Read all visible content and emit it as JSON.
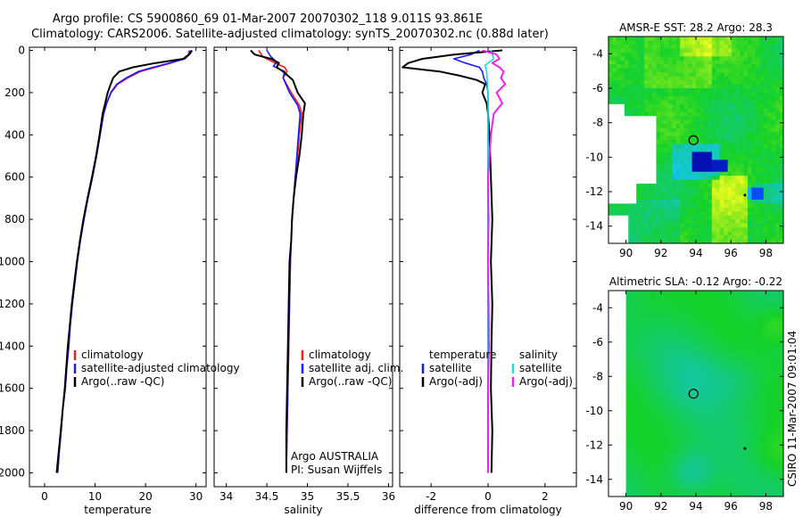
{
  "title_line1": "Argo profile: CS 5900860_69 01-Mar-2007 20070302_118 9.011S 93.861E",
  "title_line2": "Climatology: CARS2006. Satellite-adjusted climatology: synTS_20070302.nc (0.88d later)",
  "footer_text": "CSIRO 11-Mar-2007 09:01:04",
  "colors": {
    "climatology": "#ff1a1a",
    "satellite": "#1a1aff",
    "argo": "#000000",
    "cyan": "#22dddd",
    "magenta": "#ee22ee"
  },
  "chart_data": [
    {
      "id": "temperature",
      "type": "line",
      "xlabel": "temperature",
      "xlim": [
        -3,
        32
      ],
      "xticks": [
        0,
        10,
        20,
        30
      ],
      "xtick_labels": [
        "0",
        "10",
        "20",
        "30"
      ],
      "ylim": [
        0,
        2050
      ],
      "yticks": [
        0,
        200,
        400,
        600,
        800,
        1000,
        1200,
        1400,
        1600,
        1800,
        2000
      ],
      "ytick_labels": [
        "0",
        "200",
        "400",
        "600",
        "800",
        "1000",
        "1200",
        "1400",
        "1600",
        "1800",
        "2000"
      ],
      "y_reversed": true,
      "legend": [
        "climatology",
        "satellite-adjusted climatology",
        "Argo(..raw -QC)"
      ],
      "series": [
        {
          "name": "climatology",
          "color": "#ff1a1a",
          "points": [
            [
              28.6,
              0
            ],
            [
              28.5,
              20
            ],
            [
              27.6,
              40
            ],
            [
              25,
              60
            ],
            [
              22,
              80
            ],
            [
              19,
              100
            ],
            [
              16.5,
              130
            ],
            [
              14.5,
              160
            ],
            [
              13.2,
              200
            ],
            [
              12.3,
              250
            ],
            [
              11.7,
              300
            ],
            [
              11,
              400
            ],
            [
              10.3,
              500
            ],
            [
              9.5,
              600
            ],
            [
              8.6,
              700
            ],
            [
              7.8,
              800
            ],
            [
              7.1,
              900
            ],
            [
              6.5,
              1000
            ],
            [
              6,
              1100
            ],
            [
              5.5,
              1200
            ],
            [
              5.1,
              1300
            ],
            [
              4.8,
              1400
            ],
            [
              4.4,
              1500
            ],
            [
              4.1,
              1600
            ],
            [
              3.6,
              1700
            ],
            [
              3.3,
              1800
            ],
            [
              2.9,
              1900
            ],
            [
              2.6,
              2000
            ]
          ]
        },
        {
          "name": "satellite-adjusted climatology",
          "color": "#1a1aff",
          "points": [
            [
              28.9,
              0
            ],
            [
              28.7,
              20
            ],
            [
              27.8,
              40
            ],
            [
              24.8,
              60
            ],
            [
              21.5,
              80
            ],
            [
              18.6,
              100
            ],
            [
              16.2,
              130
            ],
            [
              14.3,
              160
            ],
            [
              13.1,
              200
            ],
            [
              12.3,
              250
            ],
            [
              11.7,
              300
            ],
            [
              11,
              400
            ],
            [
              10.3,
              500
            ],
            [
              9.5,
              600
            ],
            [
              8.6,
              700
            ],
            [
              7.8,
              800
            ],
            [
              7.1,
              900
            ],
            [
              6.5,
              1000
            ],
            [
              6,
              1100
            ],
            [
              5.5,
              1200
            ],
            [
              5.1,
              1300
            ],
            [
              4.8,
              1400
            ],
            [
              4.4,
              1500
            ],
            [
              4.1,
              1600
            ],
            [
              3.6,
              1700
            ],
            [
              3.3,
              1800
            ],
            [
              2.9,
              1900
            ],
            [
              2.6,
              2000
            ]
          ]
        },
        {
          "name": "Argo(..raw -QC)",
          "color": "#000000",
          "points": [
            [
              29.2,
              0
            ],
            [
              28.8,
              15
            ],
            [
              27.5,
              40
            ],
            [
              22,
              60
            ],
            [
              17.5,
              80
            ],
            [
              14.8,
              100
            ],
            [
              13.6,
              130
            ],
            [
              13.1,
              160
            ],
            [
              12.5,
              200
            ],
            [
              12,
              250
            ],
            [
              11.5,
              300
            ],
            [
              10.9,
              400
            ],
            [
              10.2,
              500
            ],
            [
              9.4,
              600
            ],
            [
              8.5,
              700
            ],
            [
              7.7,
              800
            ],
            [
              7,
              900
            ],
            [
              6.4,
              1000
            ],
            [
              5.9,
              1100
            ],
            [
              5.4,
              1200
            ],
            [
              5,
              1300
            ],
            [
              4.6,
              1400
            ],
            [
              4.3,
              1500
            ],
            [
              4,
              1600
            ],
            [
              3.6,
              1700
            ],
            [
              3.2,
              1800
            ],
            [
              2.8,
              1900
            ],
            [
              2.4,
              2000
            ]
          ]
        }
      ]
    },
    {
      "id": "salinity",
      "type": "line",
      "xlabel": "salinity",
      "xlim": [
        33.85,
        36.05
      ],
      "xticks": [
        34,
        34.5,
        35,
        35.5,
        36
      ],
      "xtick_labels": [
        "34",
        "34.5",
        "35",
        "35.5",
        "36"
      ],
      "ylim": [
        0,
        2050
      ],
      "y_reversed": true,
      "legend": [
        "climatology",
        "satellite adj. clim.",
        "Argo(..raw -QC)"
      ],
      "annotation": [
        "Argo AUSTRALIA",
        "PI: Susan Wijffels"
      ],
      "series": [
        {
          "name": "climatology",
          "color": "#ff1a1a",
          "points": [
            [
              34.4,
              0
            ],
            [
              34.45,
              30
            ],
            [
              34.6,
              60
            ],
            [
              34.72,
              80
            ],
            [
              34.75,
              100
            ],
            [
              34.7,
              130
            ],
            [
              34.8,
              200
            ],
            [
              34.9,
              260
            ],
            [
              34.93,
              300
            ],
            [
              34.9,
              400
            ],
            [
              34.88,
              500
            ],
            [
              34.85,
              600
            ],
            [
              34.83,
              700
            ],
            [
              34.81,
              800
            ],
            [
              34.8,
              900
            ],
            [
              34.79,
              1000
            ],
            [
              34.78,
              1200
            ],
            [
              34.77,
              1400
            ],
            [
              34.76,
              1600
            ],
            [
              34.75,
              1800
            ],
            [
              34.74,
              2000
            ]
          ]
        },
        {
          "name": "satellite adj. clim.",
          "color": "#1a1aff",
          "points": [
            [
              34.5,
              0
            ],
            [
              34.55,
              30
            ],
            [
              34.62,
              55
            ],
            [
              34.58,
              75
            ],
            [
              34.72,
              100
            ],
            [
              34.7,
              130
            ],
            [
              34.78,
              200
            ],
            [
              34.88,
              260
            ],
            [
              34.91,
              300
            ],
            [
              34.89,
              400
            ],
            [
              34.87,
              500
            ],
            [
              34.85,
              600
            ],
            [
              34.83,
              700
            ],
            [
              34.81,
              800
            ],
            [
              34.8,
              900
            ],
            [
              34.79,
              1000
            ],
            [
              34.78,
              1200
            ],
            [
              34.77,
              1400
            ],
            [
              34.76,
              1600
            ],
            [
              34.75,
              1800
            ],
            [
              34.74,
              2000
            ]
          ]
        },
        {
          "name": "Argo(..raw -QC)",
          "color": "#000000",
          "points": [
            [
              34.3,
              0
            ],
            [
              34.35,
              20
            ],
            [
              34.55,
              40
            ],
            [
              34.65,
              60
            ],
            [
              34.62,
              80
            ],
            [
              34.7,
              100
            ],
            [
              34.82,
              140
            ],
            [
              34.88,
              200
            ],
            [
              34.97,
              250
            ],
            [
              34.95,
              300
            ],
            [
              34.93,
              400
            ],
            [
              34.9,
              500
            ],
            [
              34.86,
              600
            ],
            [
              34.83,
              700
            ],
            [
              34.81,
              800
            ],
            [
              34.8,
              900
            ],
            [
              34.78,
              1000
            ],
            [
              34.77,
              1200
            ],
            [
              34.76,
              1400
            ],
            [
              34.75,
              1600
            ],
            [
              34.74,
              1800
            ],
            [
              34.74,
              2000
            ]
          ]
        }
      ]
    },
    {
      "id": "difference",
      "type": "line",
      "xlabel": "difference from climatology",
      "xlim": [
        -3.1,
        3.1
      ],
      "xticks": [
        -2,
        0,
        2
      ],
      "xtick_labels": [
        "-2",
        "0",
        "2"
      ],
      "ylim": [
        0,
        2050
      ],
      "y_reversed": true,
      "legend_groups": [
        {
          "title": "temperature",
          "items": [
            "satellite",
            "Argo(-adj)"
          ]
        },
        {
          "title": "salinity",
          "items": [
            "satellite",
            "Argo(-adj)"
          ]
        }
      ],
      "series": [
        {
          "name": "temperature satellite",
          "color": "#1a1aff",
          "points": [
            [
              -0.3,
              0
            ],
            [
              -0.6,
              20
            ],
            [
              -1.2,
              40
            ],
            [
              -0.8,
              60
            ],
            [
              -0.3,
              80
            ],
            [
              -0.2,
              100
            ],
            [
              -0.15,
              130
            ],
            [
              -0.05,
              160
            ],
            [
              0,
              200
            ],
            [
              0,
              400
            ],
            [
              0,
              1000
            ],
            [
              0,
              1500
            ],
            [
              0,
              2000
            ]
          ]
        },
        {
          "name": "temperature Argo(-adj)",
          "color": "#000000",
          "points": [
            [
              0.5,
              0
            ],
            [
              -1.2,
              20
            ],
            [
              -2.3,
              40
            ],
            [
              -2.8,
              60
            ],
            [
              -3,
              80
            ],
            [
              -1.7,
              100
            ],
            [
              -1,
              120
            ],
            [
              -0.4,
              140
            ],
            [
              -0.1,
              160
            ],
            [
              -0.2,
              200
            ],
            [
              -0.05,
              250
            ],
            [
              0,
              300
            ],
            [
              0.05,
              400
            ],
            [
              0.1,
              600
            ],
            [
              0.15,
              800
            ],
            [
              0.1,
              1000
            ],
            [
              0.15,
              1200
            ],
            [
              0.12,
              1400
            ],
            [
              0.1,
              1600
            ],
            [
              0.15,
              1800
            ],
            [
              0.12,
              2000
            ]
          ]
        },
        {
          "name": "salinity satellite",
          "color": "#22dddd",
          "points": [
            [
              0.1,
              0
            ],
            [
              0.2,
              40
            ],
            [
              -0.1,
              70
            ],
            [
              -0.05,
              100
            ],
            [
              0,
              200
            ],
            [
              0,
              400
            ],
            [
              0,
              800
            ],
            [
              0,
              1200
            ],
            [
              0,
              1600
            ],
            [
              0,
              2000
            ]
          ]
        },
        {
          "name": "salinity Argo(-adj)",
          "color": "#ee22ee",
          "points": [
            [
              -0.2,
              0
            ],
            [
              0.3,
              20
            ],
            [
              0.4,
              40
            ],
            [
              0.15,
              60
            ],
            [
              0.4,
              80
            ],
            [
              0.55,
              100
            ],
            [
              0.45,
              130
            ],
            [
              0.6,
              160
            ],
            [
              0.3,
              200
            ],
            [
              0.5,
              250
            ],
            [
              0.2,
              300
            ],
            [
              0.1,
              400
            ],
            [
              0,
              600
            ],
            [
              0.02,
              800
            ],
            [
              0,
              1000
            ],
            [
              0.02,
              1200
            ],
            [
              0.03,
              1400
            ],
            [
              0,
              1600
            ],
            [
              0,
              1800
            ],
            [
              0,
              2000
            ]
          ]
        }
      ]
    },
    {
      "id": "sst_map",
      "type": "heatmap",
      "title": "AMSR-E SST: 28.2 Argo: 28.3",
      "xlim": [
        89,
        99
      ],
      "ylim": [
        -15,
        -3
      ],
      "xticks": [
        90,
        92,
        94,
        96,
        98
      ],
      "xtick_labels": [
        "90",
        "92",
        "94",
        "96",
        "98"
      ],
      "yticks": [
        -4,
        -6,
        -8,
        -10,
        -12,
        -14
      ],
      "ytick_labels": [
        "-4",
        "-6",
        "-8",
        "-10",
        "-12",
        "-14"
      ],
      "profile_location": [
        93.861,
        -9.011
      ],
      "marker_points": [
        [
          96.8,
          -12.2
        ]
      ]
    },
    {
      "id": "sla_map",
      "type": "heatmap",
      "title": "Altimetric SLA: -0.12 Argo: -0.22",
      "xlim": [
        89,
        99
      ],
      "ylim": [
        -15,
        -3
      ],
      "xticks": [
        90,
        92,
        94,
        96,
        98
      ],
      "xtick_labels": [
        "90",
        "92",
        "94",
        "96",
        "98"
      ],
      "yticks": [
        -4,
        -6,
        -8,
        -10,
        -12,
        -14
      ],
      "ytick_labels": [
        "-4",
        "-6",
        "-8",
        "-10",
        "-12",
        "-14"
      ],
      "profile_location": [
        93.861,
        -9.011
      ],
      "marker_points": [
        [
          96.8,
          -12.2
        ]
      ]
    }
  ]
}
